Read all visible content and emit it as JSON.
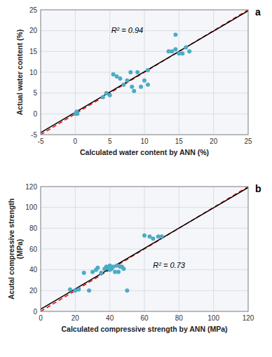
{
  "chart_data": [
    {
      "type": "scatter",
      "title": "a",
      "xlabel": "Calculated water content by ANN (%)",
      "ylabel": "Actual water content (%)",
      "xlim": [
        -5,
        25
      ],
      "ylim": [
        -5,
        25
      ],
      "xticks": [
        -5,
        0,
        5,
        10,
        15,
        20,
        25
      ],
      "yticks": [
        -5,
        0,
        5,
        10,
        15,
        20,
        25
      ],
      "grid": true,
      "series": [
        {
          "type": "scatter",
          "color": "#4bacc6",
          "marker": "circle",
          "x": [
            0.0,
            0.2,
            0.3,
            4.0,
            4.5,
            5.0,
            5.5,
            6.0,
            6.5,
            7.0,
            7.5,
            8.0,
            8.2,
            8.5,
            9.0,
            9.5,
            10.0,
            10.5,
            10.5,
            13.5,
            14.0,
            14.5,
            14.5,
            15.0,
            15.5,
            16.0,
            16.5
          ],
          "values": [
            0.0,
            0.5,
            0.0,
            4.0,
            5.0,
            4.5,
            9.5,
            9.0,
            8.5,
            7.0,
            8.0,
            10.0,
            6.5,
            5.5,
            10.0,
            6.5,
            8.0,
            7.0,
            10.5,
            15.0,
            15.0,
            19.0,
            15.5,
            14.5,
            14.5,
            16.0,
            15.0
          ]
        },
        {
          "type": "line",
          "color": "#ff0000",
          "line_style": "dashed",
          "x": [
            -5,
            25
          ],
          "values": [
            -5,
            25
          ]
        },
        {
          "type": "line",
          "color": "#000000",
          "line_style": "solid",
          "x": [
            -5,
            25
          ],
          "values": [
            -4.5026,
            24.7675
          ]
        }
      ],
      "annotations": [
        {
          "text": "R² = 0.94",
          "x": 5.2,
          "y": 19.5
        }
      ]
    },
    {
      "type": "scatter",
      "title": "b",
      "xlabel": "Calculated compressive strength by ANN (MPa)",
      "ylabel": "Acutal compressive strength\n(MPa)",
      "xlim": [
        0,
        120
      ],
      "ylim": [
        0,
        120
      ],
      "xticks": [
        0,
        20,
        40,
        60,
        80,
        100,
        120
      ],
      "yticks": [
        0,
        20,
        40,
        60,
        80,
        100,
        120
      ],
      "grid": true,
      "series": [
        {
          "type": "scatter",
          "color": "#4bacc6",
          "marker": "circle",
          "x": [
            17,
            20,
            22,
            25,
            28,
            30,
            32,
            33,
            35,
            37,
            38,
            39,
            40,
            40,
            41,
            42,
            43,
            44,
            45,
            46,
            47,
            48,
            50,
            60,
            63,
            65,
            68,
            70
          ],
          "values": [
            21,
            20,
            21,
            37,
            20,
            38,
            40,
            42,
            37,
            41,
            43,
            42,
            44,
            40,
            41,
            43,
            38,
            44,
            38,
            43,
            43,
            41,
            20,
            73,
            72,
            70,
            72,
            72
          ]
        },
        {
          "type": "line",
          "color": "#ff0000",
          "line_style": "dashed",
          "x": [
            0,
            120
          ],
          "values": [
            0,
            120
          ]
        },
        {
          "type": "line",
          "color": "#000000",
          "line_style": "solid",
          "x": [
            0,
            120
          ],
          "values": [
            2.048,
            119.0332
          ]
        }
      ],
      "annotations": [
        {
          "text": "R² = 0.73",
          "x": 65,
          "y": 42
        }
      ]
    }
  ]
}
